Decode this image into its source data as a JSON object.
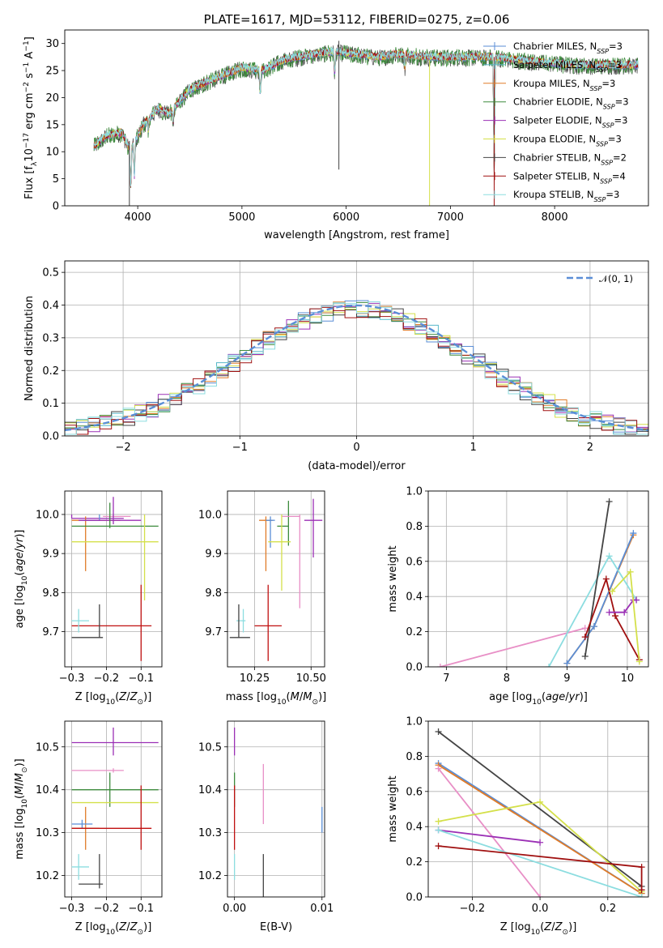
{
  "chart_data": [
    {
      "id": "spectrum",
      "type": "line",
      "title": "PLATE=1617, MJD=53112, FIBERID=0275, z=0.06",
      "xlabel": "wavelength [Angstrom, rest frame]",
      "ylabel": "Flux [f_λ 10^-17 erg cm^-2 s^-1 A^-1]",
      "xlim": [
        3300,
        8900
      ],
      "ylim": [
        0,
        32.5
      ],
      "xticks": [
        4000,
        5000,
        6000,
        7000,
        8000
      ],
      "yticks": [
        0,
        5,
        10,
        15,
        20,
        25,
        30
      ],
      "grid": false,
      "legend_position": "top-right",
      "legend": [
        {
          "name": "Chabrier MILES, N",
          "sub": "SSP",
          "post": "=3",
          "color": "#5a8ed6"
        },
        {
          "name": "Salpeter MILES, N",
          "sub": "SSP",
          "post": "=3",
          "color": "#57b8c9"
        },
        {
          "name": "Kroupa MILES, N",
          "sub": "SSP",
          "post": "=3",
          "color": "#e07b28"
        },
        {
          "name": "Chabrier ELODIE, N",
          "sub": "SSP",
          "post": "=3",
          "color": "#3d8b3d"
        },
        {
          "name": "Salpeter ELODIE, N",
          "sub": "SSP",
          "post": "=3",
          "color": "#9b30b5"
        },
        {
          "name": "Kroupa ELODIE, N",
          "sub": "SSP",
          "post": "=3",
          "color": "#d4e04a"
        },
        {
          "name": "Chabrier STELIB, N",
          "sub": "SSP",
          "post": "=2",
          "color": "#444444"
        },
        {
          "name": "Salpeter STELIB, N",
          "sub": "SSP",
          "post": "=4",
          "color": "#a01010"
        },
        {
          "name": "Kroupa STELIB, N",
          "sub": "SSP",
          "post": "=3",
          "color": "#8cdde0"
        }
      ],
      "continuum": [
        [
          3580,
          11
        ],
        [
          3700,
          13
        ],
        [
          3850,
          13.5
        ],
        [
          3930,
          10
        ],
        [
          4050,
          15
        ],
        [
          4200,
          18
        ],
        [
          4300,
          17
        ],
        [
          4500,
          21.5
        ],
        [
          4800,
          24
        ],
        [
          5000,
          25.5
        ],
        [
          5200,
          25
        ],
        [
          5400,
          27
        ],
        [
          5700,
          28
        ],
        [
          5900,
          28.5
        ],
        [
          6100,
          28
        ],
        [
          6300,
          27.5
        ],
        [
          6500,
          28
        ],
        [
          6800,
          27.5
        ],
        [
          7100,
          27.5
        ],
        [
          7400,
          27.5
        ],
        [
          7600,
          27
        ],
        [
          7900,
          26.5
        ],
        [
          8200,
          26
        ],
        [
          8600,
          26
        ],
        [
          8800,
          26
        ]
      ],
      "dips": [
        [
          3933,
          1
        ],
        [
          3968,
          4
        ],
        [
          4102,
          13
        ],
        [
          4340,
          15
        ],
        [
          5175,
          19
        ],
        [
          5890,
          23
        ],
        [
          6563,
          25
        ],
        [
          7420,
          0
        ]
      ]
    },
    {
      "id": "residuals",
      "type": "histogram",
      "xlabel": "(data-model)/error",
      "ylabel": "Normed distribution",
      "xlim": [
        -2.5,
        2.5
      ],
      "ylim": [
        0,
        0.535
      ],
      "xticks": [
        -2,
        -1,
        0,
        1,
        2
      ],
      "yticks": [
        0.0,
        0.1,
        0.2,
        0.3,
        0.4,
        0.5
      ],
      "grid": true,
      "bin_width": 0.1,
      "legend": "𝒩(0, 1)",
      "legend_position": "top-right",
      "reference_curve": {
        "type": "gaussian",
        "mu": 0,
        "sigma": 1,
        "color": "#5a8ed6"
      }
    },
    {
      "id": "age-vs-Z",
      "type": "errorbar",
      "xlabel": "Z [log₁₀(Z/Z⊙)]",
      "ylabel": "age  [log₁₀(age/yr)]",
      "xlim": [
        -0.32,
        -0.04
      ],
      "ylim": [
        9.61,
        10.06
      ],
      "xticks": [
        -0.3,
        -0.2,
        -0.1
      ],
      "yticks": [
        9.7,
        9.8,
        9.9,
        10.0
      ],
      "grid": true,
      "points": [
        {
          "x": -0.3,
          "y": 9.99,
          "xerr": [
            0,
            0.15
          ],
          "yerr": [
            0,
            0.01
          ],
          "color": "#9b30b5"
        },
        {
          "x": -0.26,
          "y": 9.985,
          "xerr": [
            0.04,
            0.1
          ],
          "yerr": [
            0.13,
            0.01
          ],
          "color": "#e07b28"
        },
        {
          "x": -0.22,
          "y": 9.985,
          "xerr": [
            0.05,
            0
          ],
          "yerr": [
            0,
            0.015
          ],
          "color": "#5a8ed6"
        },
        {
          "x": -0.18,
          "y": 9.995,
          "xerr": [
            0.03,
            0.05
          ],
          "yerr": [
            0.005,
            0.005
          ],
          "color": "#e88fc6"
        },
        {
          "x": -0.18,
          "y": 9.985,
          "xerr": [
            0.1,
            0.08
          ],
          "yerr": [
            0.01,
            0.06
          ],
          "color": "#9b30b5"
        },
        {
          "x": -0.19,
          "y": 9.97,
          "xerr": [
            0.11,
            0.14
          ],
          "yerr": [
            0.005,
            0.06
          ],
          "color": "#3d8b3d"
        },
        {
          "x": -0.09,
          "y": 9.93,
          "xerr": [
            0.21,
            0.04
          ],
          "yerr": [
            0.15,
            0.07
          ],
          "color": "#d4e04a"
        },
        {
          "x": -0.1,
          "y": 9.715,
          "xerr": [
            0.2,
            0.03
          ],
          "yerr": [
            0.09,
            0.105
          ],
          "color": "#c01010"
        },
        {
          "x": -0.28,
          "y": 9.728,
          "xerr": [
            0.02,
            0.03
          ],
          "yerr": [
            0.03,
            0.03
          ],
          "color": "#8cdde0"
        },
        {
          "x": -0.22,
          "y": 9.685,
          "xerr": [
            0.08,
            0.01
          ],
          "yerr": [
            0,
            0.085
          ],
          "color": "#444444"
        }
      ]
    },
    {
      "id": "age-vs-mass",
      "type": "errorbar",
      "xlabel": "mass [log₁₀(M/M⊙)]",
      "ylabel": "",
      "xlim": [
        10.13,
        10.56
      ],
      "ylim": [
        9.61,
        10.06
      ],
      "xticks": [
        10.25,
        10.5
      ],
      "yticks": [
        9.7,
        9.8,
        9.9,
        10.0
      ],
      "grid": true,
      "points": [
        {
          "x": 10.3,
          "y": 9.985,
          "xerr": [
            0.03,
            0.03
          ],
          "yerr": [
            0.13,
            0.01
          ],
          "color": "#e07b28"
        },
        {
          "x": 10.32,
          "y": 9.985,
          "xerr": [
            0.02,
            0.02
          ],
          "yerr": [
            0.07,
            0.01
          ],
          "color": "#5a8ed6"
        },
        {
          "x": 10.4,
          "y": 9.97,
          "xerr": [
            0.05,
            0
          ],
          "yerr": [
            0.05,
            0.065
          ],
          "color": "#3d8b3d"
        },
        {
          "x": 10.45,
          "y": 9.995,
          "xerr": [
            0.08,
            0
          ],
          "yerr": [
            0.235,
            0.005
          ],
          "color": "#e88fc6"
        },
        {
          "x": 10.51,
          "y": 9.985,
          "xerr": [
            0.04,
            0.04
          ],
          "yerr": [
            0.095,
            0.055
          ],
          "color": "#9b30b5"
        },
        {
          "x": 10.37,
          "y": 9.93,
          "xerr": [
            0.06,
            0.04
          ],
          "yerr": [
            0.125,
            0.07
          ],
          "color": "#d4e04a"
        },
        {
          "x": 10.31,
          "y": 9.715,
          "xerr": [
            0.06,
            0.06
          ],
          "yerr": [
            0.09,
            0.105
          ],
          "color": "#c01010"
        },
        {
          "x": 10.2,
          "y": 9.728,
          "xerr": [
            0.03,
            0.01
          ],
          "yerr": [
            0.03,
            0.03
          ],
          "color": "#8cdde0"
        },
        {
          "x": 10.18,
          "y": 9.685,
          "xerr": [
            0.04,
            0.05
          ],
          "yerr": [
            0,
            0.085
          ],
          "color": "#444444"
        }
      ]
    },
    {
      "id": "massweight-vs-age",
      "type": "line",
      "xlabel": "age  [log₁₀(age/yr)]",
      "ylabel": "mass weight",
      "xlim": [
        6.7,
        10.35
      ],
      "ylim": [
        0,
        1
      ],
      "xticks": [
        7,
        8,
        9,
        10
      ],
      "yticks": [
        0.0,
        0.2,
        0.4,
        0.6,
        0.8,
        1.0
      ],
      "grid": true,
      "series": [
        {
          "color": "#e88fc6",
          "points": [
            [
              6.9,
              0
            ],
            [
              9.3,
              0.22
            ]
          ]
        },
        {
          "color": "#e07b28",
          "points": [
            [
              9.0,
              0.02
            ],
            [
              9.45,
              0.23
            ],
            [
              10.1,
              0.75
            ]
          ]
        },
        {
          "color": "#5a8ed6",
          "points": [
            [
              9.0,
              0.02
            ],
            [
              9.45,
              0.23
            ],
            [
              10.1,
              0.76
            ]
          ]
        },
        {
          "color": "#8cdde0",
          "points": [
            [
              8.7,
              0
            ],
            [
              9.7,
              0.63
            ],
            [
              10.15,
              0.38
            ]
          ]
        },
        {
          "color": "#444444",
          "points": [
            [
              9.3,
              0.06
            ],
            [
              9.7,
              0.94
            ]
          ]
        },
        {
          "color": "#a01010",
          "points": [
            [
              9.3,
              0.17
            ],
            [
              9.65,
              0.5
            ],
            [
              9.8,
              0.29
            ],
            [
              10.2,
              0.04
            ]
          ]
        },
        {
          "color": "#9b30b5",
          "points": [
            [
              9.7,
              0.31
            ],
            [
              9.95,
              0.31
            ],
            [
              10.1,
              0.38
            ],
            [
              10.15,
              0.38
            ]
          ]
        },
        {
          "color": "#d4e04a",
          "points": [
            [
              9.75,
              0.43
            ],
            [
              10.05,
              0.54
            ],
            [
              10.2,
              0.03
            ]
          ]
        }
      ]
    },
    {
      "id": "mass-vs-Z",
      "type": "errorbar",
      "xlabel": "Z [log₁₀(Z/Z⊙)]",
      "ylabel": "mass [log₁₀(M/M⊙)]",
      "xlim": [
        -0.32,
        -0.04
      ],
      "ylim": [
        10.15,
        10.56
      ],
      "xticks": [
        -0.3,
        -0.2,
        -0.1
      ],
      "yticks": [
        10.2,
        10.3,
        10.4,
        10.5
      ],
      "grid": true,
      "points": [
        {
          "x": -0.18,
          "y": 10.51,
          "xerr": [
            0.12,
            0.13
          ],
          "yerr": [
            0.03,
            0.035
          ],
          "color": "#9b30b5"
        },
        {
          "x": -0.18,
          "y": 10.445,
          "xerr": [
            0.12,
            0.03
          ],
          "yerr": [
            0.005,
            0.005
          ],
          "color": "#e88fc6"
        },
        {
          "x": -0.19,
          "y": 10.4,
          "xerr": [
            0.11,
            0.14
          ],
          "yerr": [
            0.04,
            0.04
          ],
          "color": "#3d8b3d"
        },
        {
          "x": -0.09,
          "y": 10.37,
          "xerr": [
            0.21,
            0.04
          ],
          "yerr": [
            0,
            0
          ],
          "color": "#d4e04a"
        },
        {
          "x": -0.26,
          "y": 10.31,
          "xerr": [
            0.04,
            0.04
          ],
          "yerr": [
            0.05,
            0.05
          ],
          "color": "#e07b28"
        },
        {
          "x": -0.27,
          "y": 10.32,
          "xerr": [
            0.03,
            0.03
          ],
          "yerr": [
            0.01,
            0.01
          ],
          "color": "#5a8ed6"
        },
        {
          "x": -0.1,
          "y": 10.31,
          "xerr": [
            0.2,
            0.03
          ],
          "yerr": [
            0.05,
            0.1
          ],
          "color": "#c01010"
        },
        {
          "x": -0.28,
          "y": 10.22,
          "xerr": [
            0.02,
            0.03
          ],
          "yerr": [
            0.03,
            0.03
          ],
          "color": "#8cdde0"
        },
        {
          "x": -0.22,
          "y": 10.18,
          "xerr": [
            0.06,
            0.01
          ],
          "yerr": [
            0.01,
            0.07
          ],
          "color": "#444444"
        }
      ]
    },
    {
      "id": "mass-vs-EBV",
      "type": "errorbar",
      "xlabel": "E(B-V)",
      "ylabel": "",
      "xlim": [
        -0.0008,
        0.0103
      ],
      "ylim": [
        10.15,
        10.56
      ],
      "xticks": [
        0.0,
        0.01
      ],
      "xtick_labels": [
        "0.00",
        "0.01"
      ],
      "yticks": [
        10.2,
        10.3,
        10.4,
        10.5
      ],
      "grid": true,
      "points": [
        {
          "x": 0.0,
          "y": 10.51,
          "xerr": [
            0,
            0
          ],
          "yerr": [
            0.03,
            0.035
          ],
          "color": "#9b30b5"
        },
        {
          "x": 0.0,
          "y": 10.4,
          "xerr": [
            0,
            0
          ],
          "yerr": [
            0.04,
            0.04
          ],
          "color": "#3d8b3d"
        },
        {
          "x": 0.0,
          "y": 10.31,
          "xerr": [
            0,
            0
          ],
          "yerr": [
            0.05,
            0.1
          ],
          "color": "#c01010"
        },
        {
          "x": 0.0,
          "y": 10.22,
          "xerr": [
            0,
            0
          ],
          "yerr": [
            0.03,
            0.03
          ],
          "color": "#8cdde0"
        },
        {
          "x": 0.0033,
          "y": 10.39,
          "xerr": [
            0,
            0
          ],
          "yerr": [
            0.07,
            0.07
          ],
          "color": "#e88fc6"
        },
        {
          "x": 0.0033,
          "y": 10.2,
          "xerr": [
            0,
            0
          ],
          "yerr": [
            0.05,
            0.05
          ],
          "color": "#444444"
        },
        {
          "x": 0.01,
          "y": 10.33,
          "xerr": [
            0,
            0
          ],
          "yerr": [
            0.03,
            0.03
          ],
          "color": "#5a8ed6"
        }
      ]
    },
    {
      "id": "massweight-vs-Z",
      "type": "line",
      "xlabel": "Z [log₁₀(Z/Z⊙)]",
      "ylabel": "mass weight",
      "xlim": [
        -0.33,
        0.32
      ],
      "ylim": [
        0,
        1
      ],
      "xticks": [
        -0.2,
        0.0,
        0.2
      ],
      "yticks": [
        0.0,
        0.2,
        0.4,
        0.6,
        0.8,
        1.0
      ],
      "grid": true,
      "series": [
        {
          "color": "#444444",
          "points": [
            [
              -0.3,
              0.94
            ],
            [
              0.3,
              0.06
            ]
          ]
        },
        {
          "color": "#5a8ed6",
          "points": [
            [
              -0.3,
              0.76
            ],
            [
              0.3,
              0.02
            ]
          ]
        },
        {
          "color": "#e07b28",
          "points": [
            [
              -0.3,
              0.75
            ],
            [
              0.3,
              0.02
            ]
          ]
        },
        {
          "color": "#e88fc6",
          "points": [
            [
              -0.3,
              0.73
            ],
            [
              0.0,
              0.0
            ]
          ]
        },
        {
          "color": "#d4e04a",
          "points": [
            [
              -0.3,
              0.43
            ],
            [
              0.0,
              0.54
            ],
            [
              0.3,
              0.03
            ]
          ]
        },
        {
          "color": "#9b30b5",
          "points": [
            [
              -0.3,
              0.38
            ],
            [
              0.0,
              0.31
            ]
          ]
        },
        {
          "color": "#8cdde0",
          "points": [
            [
              -0.3,
              0.38
            ],
            [
              0.3,
              0.0
            ]
          ]
        },
        {
          "color": "#a01010",
          "points": [
            [
              -0.3,
              0.29
            ],
            [
              0.3,
              0.17
            ],
            [
              0.3,
              0.04
            ]
          ]
        }
      ]
    }
  ]
}
